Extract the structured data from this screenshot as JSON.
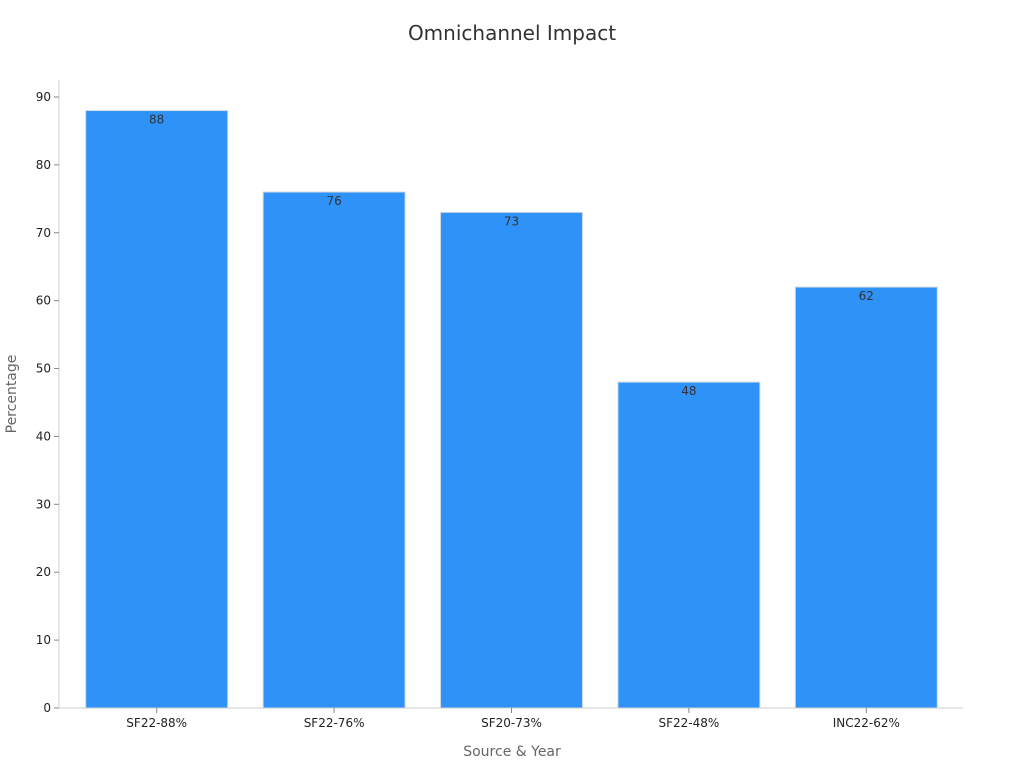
{
  "chart_data": {
    "type": "bar",
    "title": "Omnichannel Impact",
    "xlabel": "Source & Year",
    "ylabel": "Percentage",
    "categories": [
      "SF22-88%",
      "SF22-76%",
      "SF20-73%",
      "SF22-48%",
      "INC22-62%"
    ],
    "values": [
      88,
      76,
      73,
      48,
      62
    ],
    "ylim": [
      0,
      92.5
    ],
    "yticks": [
      0,
      10,
      20,
      30,
      40,
      50,
      60,
      70,
      80,
      90
    ],
    "grid": false,
    "data_labels": true,
    "bar_color": "#2f92f8",
    "bar_edge_color": "#d0d8e0"
  }
}
